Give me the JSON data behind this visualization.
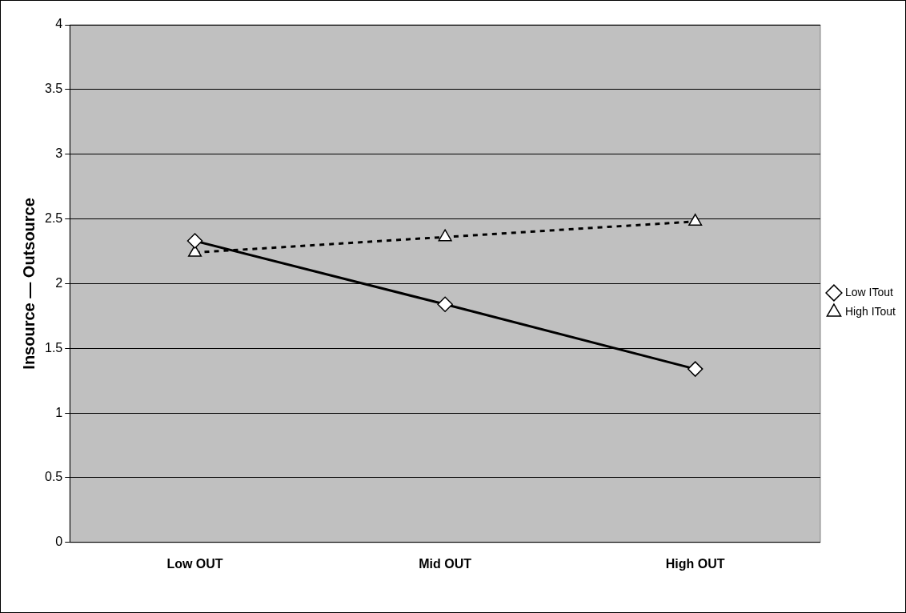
{
  "chart_data": {
    "type": "line",
    "ylabel": "Insource — Outsource",
    "categories": [
      "Low OUT",
      "Mid OUT",
      "High OUT"
    ],
    "series": [
      {
        "name": "Low ITout",
        "color": "#000000",
        "values": [
          2.33,
          1.84,
          1.34
        ],
        "marker": "diamond",
        "line_style": "solid"
      },
      {
        "name": "High ITout",
        "color": "#000000",
        "values": [
          2.24,
          2.36,
          2.48
        ],
        "marker": "triangle",
        "line_style": "dashed"
      }
    ],
    "ylim": [
      0,
      4
    ],
    "yticks": [
      0,
      0.5,
      1,
      1.5,
      2,
      2.5,
      3,
      3.5,
      4
    ],
    "grid": "y",
    "legend": "right"
  }
}
